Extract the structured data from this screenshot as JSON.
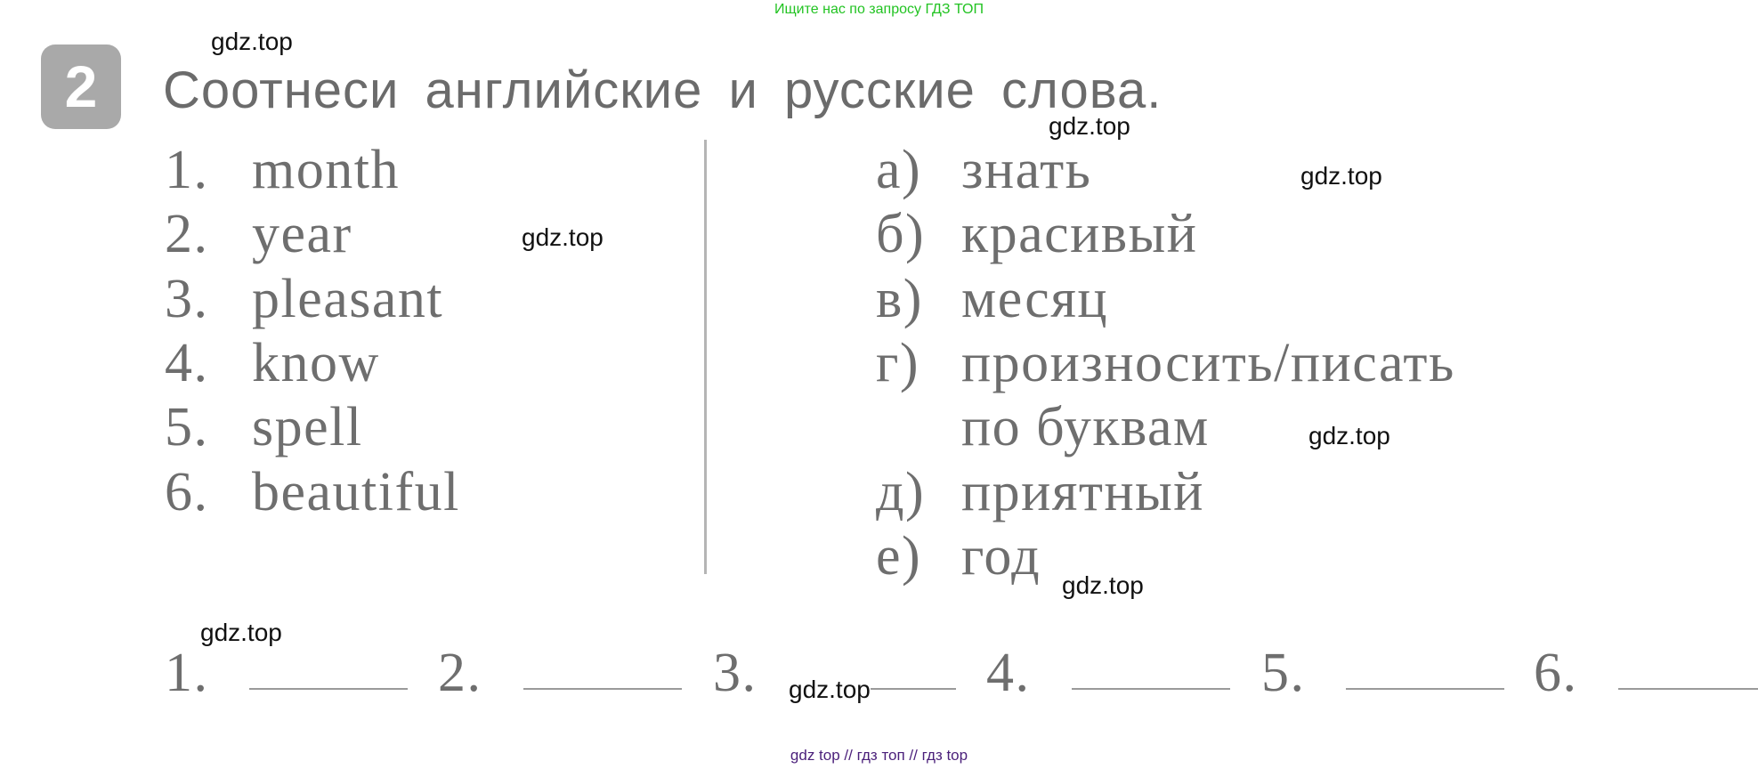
{
  "top_note": "Ищите нас по запросу ГДЗ ТОП",
  "exercise": {
    "number": "2",
    "title": "Соотнеси английские и русские слова.",
    "english": [
      {
        "n": "1.",
        "word": "month"
      },
      {
        "n": "2.",
        "word": "year"
      },
      {
        "n": "3.",
        "word": "pleasant"
      },
      {
        "n": "4.",
        "word": "know"
      },
      {
        "n": "5.",
        "word": "spell"
      },
      {
        "n": "6.",
        "word": "beautiful"
      }
    ],
    "russian": [
      {
        "l": "а)",
        "word": "знать"
      },
      {
        "l": "б)",
        "word": "красивый"
      },
      {
        "l": "в)",
        "word": "месяц"
      },
      {
        "l": "г)",
        "word": "произносить/писать"
      },
      {
        "l": "",
        "word": "по буквам"
      },
      {
        "l": "д)",
        "word": "приятный"
      },
      {
        "l": "е)",
        "word": "год"
      }
    ],
    "answers": [
      "1.",
      "2.",
      "3.",
      "4.",
      "5.",
      "6."
    ]
  },
  "watermark": "gdz.top",
  "footer": "gdz top  //  гдз топ  //  гдз top"
}
